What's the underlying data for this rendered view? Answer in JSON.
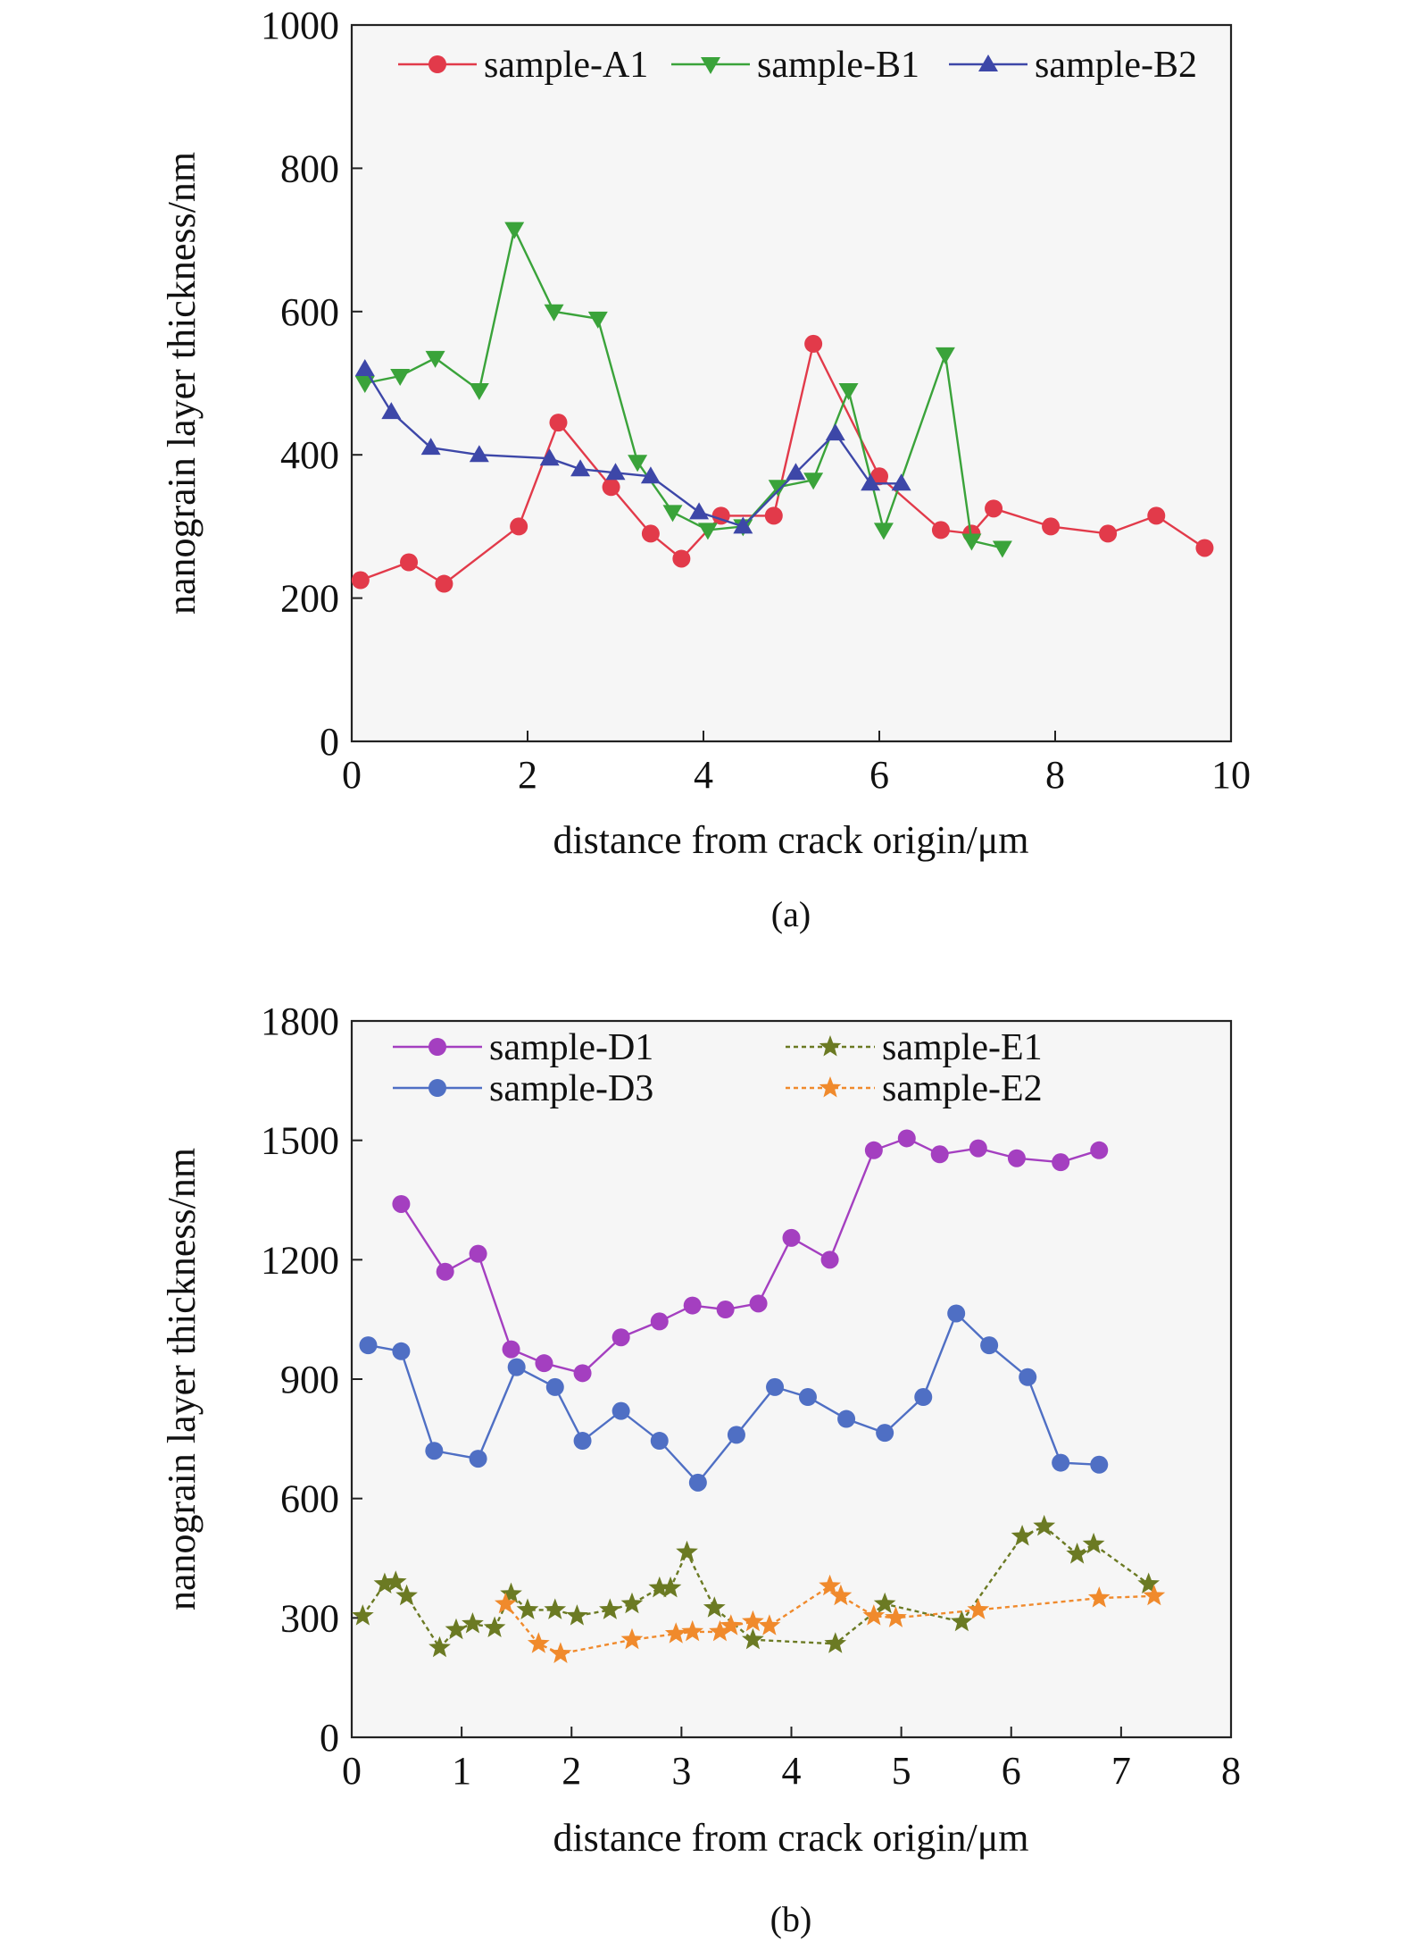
{
  "chart_data": [
    {
      "type": "line",
      "panel_label": "(a)",
      "xlabel": "distance from crack origin/μm",
      "ylabel": "nanograin layer thickness/nm",
      "xlim": [
        0,
        10
      ],
      "ylim": [
        0,
        1000
      ],
      "xticks": [
        0,
        2,
        4,
        6,
        8,
        10
      ],
      "yticks": [
        0,
        200,
        400,
        600,
        800,
        1000
      ],
      "legend": {
        "placement": "top",
        "columns": 3
      },
      "series": [
        {
          "name": "sample-A1",
          "color": "#e23a4a",
          "marker": "circle",
          "dashed": false,
          "x": [
            0.1,
            0.65,
            1.05,
            1.9,
            2.35,
            2.95,
            3.4,
            3.75,
            4.2,
            4.8,
            5.25,
            6.0,
            6.7,
            7.05,
            7.3,
            7.95,
            8.6,
            9.15,
            9.7
          ],
          "y": [
            225,
            250,
            220,
            300,
            445,
            355,
            290,
            255,
            315,
            315,
            555,
            370,
            295,
            290,
            325,
            300,
            290,
            315,
            270
          ]
        },
        {
          "name": "sample-B1",
          "color": "#3aa33a",
          "marker": "triangle-down",
          "dashed": false,
          "x": [
            0.15,
            0.55,
            0.95,
            1.45,
            1.85,
            2.3,
            2.8,
            3.25,
            3.65,
            4.05,
            4.45,
            4.85,
            5.25,
            5.65,
            6.05,
            6.75,
            7.05,
            7.4
          ],
          "y": [
            500,
            510,
            535,
            490,
            715,
            600,
            590,
            390,
            320,
            295,
            300,
            355,
            365,
            490,
            295,
            540,
            280,
            270
          ]
        },
        {
          "name": "sample-B2",
          "color": "#3d47a8",
          "marker": "triangle-up",
          "dashed": false,
          "x": [
            0.15,
            0.45,
            0.9,
            1.45,
            2.25,
            2.6,
            3.0,
            3.4,
            3.95,
            4.45,
            5.05,
            5.5,
            5.9,
            6.25
          ],
          "y": [
            520,
            460,
            410,
            400,
            395,
            380,
            375,
            370,
            320,
            300,
            375,
            430,
            360,
            360
          ]
        }
      ]
    },
    {
      "type": "line",
      "panel_label": "(b)",
      "xlabel": "distance from crack origin/μm",
      "ylabel": "nanograin layer thickness/nm",
      "xlim": [
        0,
        8
      ],
      "ylim": [
        0,
        1800
      ],
      "xticks": [
        0,
        1,
        2,
        3,
        4,
        5,
        6,
        7,
        8
      ],
      "yticks": [
        0,
        300,
        600,
        900,
        1200,
        1500,
        1800
      ],
      "legend": {
        "placement": "top",
        "columns": 2
      },
      "series": [
        {
          "name": "sample-D1",
          "color": "#a43fc0",
          "marker": "circle",
          "dashed": false,
          "x": [
            0.45,
            0.85,
            1.15,
            1.45,
            1.75,
            2.1,
            2.45,
            2.8,
            3.1,
            3.4,
            3.7,
            4.0,
            4.35,
            4.75,
            5.05,
            5.35,
            5.7,
            6.05,
            6.45,
            6.8
          ],
          "y": [
            1340,
            1170,
            1215,
            975,
            940,
            915,
            1005,
            1045,
            1085,
            1075,
            1090,
            1255,
            1200,
            1475,
            1505,
            1465,
            1480,
            1455,
            1445,
            1475
          ]
        },
        {
          "name": "sample-D3",
          "color": "#4f6fc4",
          "marker": "circle",
          "dashed": false,
          "x": [
            0.15,
            0.45,
            0.75,
            1.15,
            1.5,
            1.85,
            2.1,
            2.45,
            2.8,
            3.15,
            3.5,
            3.85,
            4.15,
            4.5,
            4.85,
            5.2,
            5.5,
            5.8,
            6.15,
            6.45,
            6.8
          ],
          "y": [
            985,
            970,
            720,
            700,
            930,
            880,
            745,
            820,
            745,
            640,
            760,
            880,
            855,
            800,
            765,
            855,
            1065,
            985,
            905,
            690,
            685
          ]
        },
        {
          "name": "sample-E1",
          "color": "#6b7a23",
          "marker": "star",
          "dashed": true,
          "x": [
            0.1,
            0.3,
            0.4,
            0.5,
            0.8,
            0.95,
            1.1,
            1.3,
            1.45,
            1.6,
            1.85,
            2.05,
            2.35,
            2.55,
            2.8,
            2.9,
            3.05,
            3.3,
            3.65,
            4.4,
            4.85,
            5.55,
            6.1,
            6.3,
            6.6,
            6.75,
            7.25
          ],
          "y": [
            305,
            385,
            390,
            355,
            225,
            270,
            285,
            275,
            360,
            320,
            320,
            305,
            320,
            335,
            375,
            375,
            465,
            325,
            245,
            235,
            335,
            290,
            505,
            530,
            460,
            485,
            385
          ]
        },
        {
          "name": "sample-E2",
          "color": "#f08a2c",
          "marker": "star",
          "dashed": true,
          "x": [
            1.4,
            1.7,
            1.9,
            2.55,
            2.95,
            3.1,
            3.35,
            3.45,
            3.65,
            3.8,
            4.35,
            4.45,
            4.75,
            4.95,
            5.7,
            6.8,
            7.3
          ],
          "y": [
            335,
            235,
            210,
            245,
            260,
            265,
            265,
            280,
            290,
            280,
            380,
            355,
            305,
            300,
            320,
            350,
            355
          ]
        }
      ]
    }
  ]
}
